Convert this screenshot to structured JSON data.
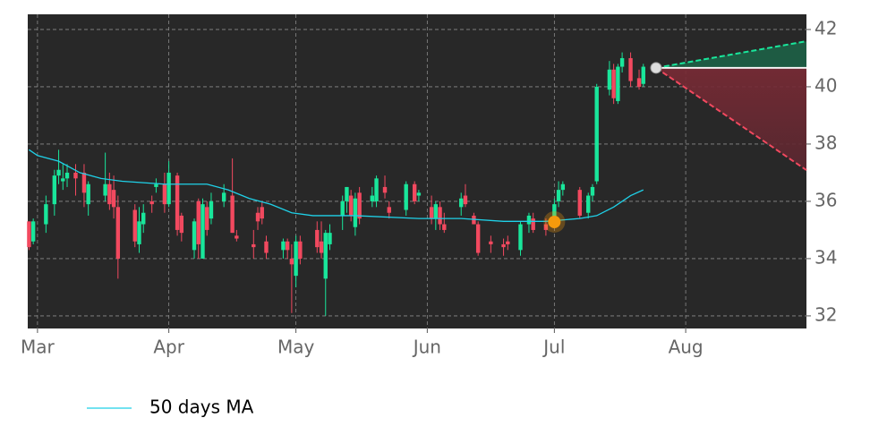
{
  "chart_data": {
    "type": "candlestick",
    "xlim": [
      -2.3,
      181.5
    ],
    "xticks": [
      {
        "value": 0,
        "label": "Mar"
      },
      {
        "value": 31,
        "label": "Apr"
      },
      {
        "value": 61,
        "label": "May"
      },
      {
        "value": 92,
        "label": "Jun"
      },
      {
        "value": 122,
        "label": "Jul"
      },
      {
        "value": 153,
        "label": "Aug"
      }
    ],
    "ylim": [
      31.56,
      42.53
    ],
    "yticks": [
      32,
      34,
      36,
      38,
      40,
      42
    ],
    "grid": true,
    "up_color": "#19e69b",
    "down_color": "#f2495f",
    "candles": {
      "x": [
        -2,
        -1,
        2,
        4,
        5,
        6,
        7,
        9,
        11,
        12,
        16,
        17,
        18,
        19,
        23,
        24,
        25,
        27,
        28,
        30,
        31,
        33,
        34,
        37,
        38,
        39,
        40,
        41,
        44,
        46,
        47,
        51,
        52,
        53,
        54,
        58,
        59,
        60,
        61,
        62,
        66,
        67,
        68,
        69,
        72,
        73,
        74,
        75,
        76,
        79,
        80,
        82,
        83,
        87,
        89,
        90,
        93,
        94,
        95,
        96,
        100,
        101,
        103,
        104,
        107,
        110,
        111,
        114,
        116,
        117,
        120,
        122,
        123,
        124,
        128,
        130,
        131,
        132,
        135,
        136,
        137,
        138,
        140,
        142,
        143
      ],
      "open": [
        35.3,
        34.6,
        35.2,
        35.9,
        36.9,
        36.7,
        36.8,
        37.0,
        37.0,
        35.9,
        36.2,
        36.6,
        36.4,
        35.8,
        35.7,
        34.5,
        35.2,
        36.0,
        36.5,
        36.6,
        35.9,
        36.9,
        35.5,
        34.3,
        36.0,
        34.0,
        35.8,
        35.4,
        36.0,
        36.2,
        34.8,
        34.5,
        35.6,
        35.8,
        34.6,
        34.3,
        34.6,
        34.0,
        33.4,
        34.6,
        35.0,
        34.6,
        33.3,
        34.5,
        35.5,
        36.0,
        36.2,
        35.1,
        36.3,
        36.0,
        36.0,
        36.5,
        35.8,
        35.7,
        36.6,
        36.2,
        35.8,
        35.4,
        35.8,
        35.2,
        35.8,
        36.2,
        35.5,
        35.2,
        34.6,
        34.5,
        34.6,
        34.3,
        35.2,
        35.4,
        35.2,
        35.4,
        36.0,
        36.4,
        36.4,
        35.6,
        36.2,
        36.7,
        39.9,
        40.6,
        39.5,
        40.7,
        41.0,
        40.3,
        40.1
      ],
      "high": [
        35.3,
        35.4,
        36.2,
        37.1,
        37.8,
        37.3,
        37.3,
        37.3,
        37.3,
        36.7,
        37.7,
        37.0,
        36.9,
        36.2,
        35.9,
        35.8,
        35.9,
        36.2,
        36.8,
        37.0,
        37.4,
        37.0,
        35.6,
        35.4,
        36.1,
        36.1,
        36.0,
        36.3,
        36.6,
        37.5,
        35.0,
        35.0,
        35.8,
        36.0,
        34.8,
        34.7,
        34.7,
        34.5,
        34.8,
        34.8,
        35.3,
        35.3,
        35.0,
        35.2,
        36.2,
        36.5,
        36.4,
        36.3,
        36.5,
        36.5,
        36.9,
        36.9,
        36.0,
        36.7,
        36.7,
        36.4,
        36.2,
        36.0,
        36.0,
        35.6,
        36.3,
        36.6,
        35.6,
        35.3,
        34.8,
        34.7,
        34.8,
        35.3,
        35.6,
        35.6,
        35.4,
        36.1,
        36.7,
        36.7,
        36.5,
        36.3,
        36.6,
        40.1,
        40.9,
        40.8,
        40.8,
        41.2,
        41.2,
        40.6,
        40.8
      ],
      "low": [
        34.3,
        34.5,
        34.9,
        35.5,
        36.6,
        36.4,
        36.5,
        36.2,
        35.8,
        35.5,
        36.0,
        35.7,
        35.4,
        33.3,
        34.4,
        34.2,
        34.9,
        35.6,
        36.3,
        35.6,
        35.8,
        34.8,
        34.6,
        34.0,
        34.0,
        34.0,
        34.8,
        35.2,
        35.8,
        34.9,
        34.6,
        34.0,
        35.0,
        35.2,
        34.0,
        34.0,
        34.0,
        32.1,
        33.0,
        33.8,
        34.2,
        34.0,
        32.0,
        34.3,
        35.0,
        35.6,
        35.3,
        34.8,
        35.2,
        35.8,
        35.8,
        36.1,
        35.4,
        35.5,
        35.9,
        36.0,
        35.2,
        35.0,
        35.0,
        34.9,
        35.5,
        35.8,
        35.2,
        34.1,
        34.2,
        34.1,
        34.3,
        34.1,
        34.9,
        34.9,
        34.8,
        35.2,
        35.8,
        36.2,
        35.4,
        35.4,
        36.0,
        36.6,
        39.7,
        39.4,
        39.4,
        40.5,
        40.0,
        39.9,
        40.0
      ],
      "close": [
        34.4,
        35.3,
        35.9,
        36.9,
        37.1,
        36.8,
        37.0,
        36.8,
        36.3,
        36.6,
        36.6,
        35.9,
        35.8,
        34.0,
        34.6,
        35.3,
        35.6,
        35.9,
        36.6,
        35.9,
        37.0,
        35.0,
        34.9,
        35.3,
        34.5,
        35.9,
        35.0,
        36.0,
        36.3,
        34.9,
        34.7,
        34.4,
        35.3,
        35.4,
        34.2,
        34.6,
        34.3,
        33.8,
        34.6,
        34.0,
        34.4,
        34.2,
        34.9,
        34.9,
        36.0,
        36.5,
        35.5,
        36.1,
        35.4,
        36.2,
        36.8,
        36.3,
        35.6,
        36.6,
        36.0,
        36.3,
        35.4,
        35.9,
        35.2,
        35.0,
        36.1,
        35.9,
        35.2,
        34.2,
        34.5,
        34.4,
        34.5,
        35.2,
        35.5,
        35.0,
        35.0,
        35.9,
        36.4,
        36.6,
        35.5,
        36.2,
        36.5,
        40.0,
        40.6,
        39.6,
        40.7,
        41.0,
        40.2,
        40.0,
        40.7
      ]
    },
    "series": [
      {
        "name": "50 days MA",
        "color": "#1fd1e8",
        "x": [
          -2,
          0,
          5,
          10,
          15,
          20,
          30,
          40,
          45,
          50,
          55,
          60,
          65,
          75,
          90,
          100,
          110,
          120,
          128,
          132,
          136,
          140,
          143
        ],
        "values": [
          37.8,
          37.6,
          37.4,
          37.0,
          36.8,
          36.7,
          36.6,
          36.6,
          36.4,
          36.1,
          35.9,
          35.6,
          35.5,
          35.5,
          35.4,
          35.4,
          35.3,
          35.3,
          35.4,
          35.5,
          35.8,
          36.2,
          36.4
        ]
      }
    ],
    "signal": {
      "x": 122,
      "y": 35.28,
      "color": "#f59a0c"
    },
    "forecast": {
      "x": [
        146,
        181.5
      ],
      "start": 40.66,
      "upper": 41.59,
      "lower": 37.09,
      "up_color": "#19e69b",
      "down_color": "#f2495f"
    },
    "legend": "bottom-left"
  }
}
